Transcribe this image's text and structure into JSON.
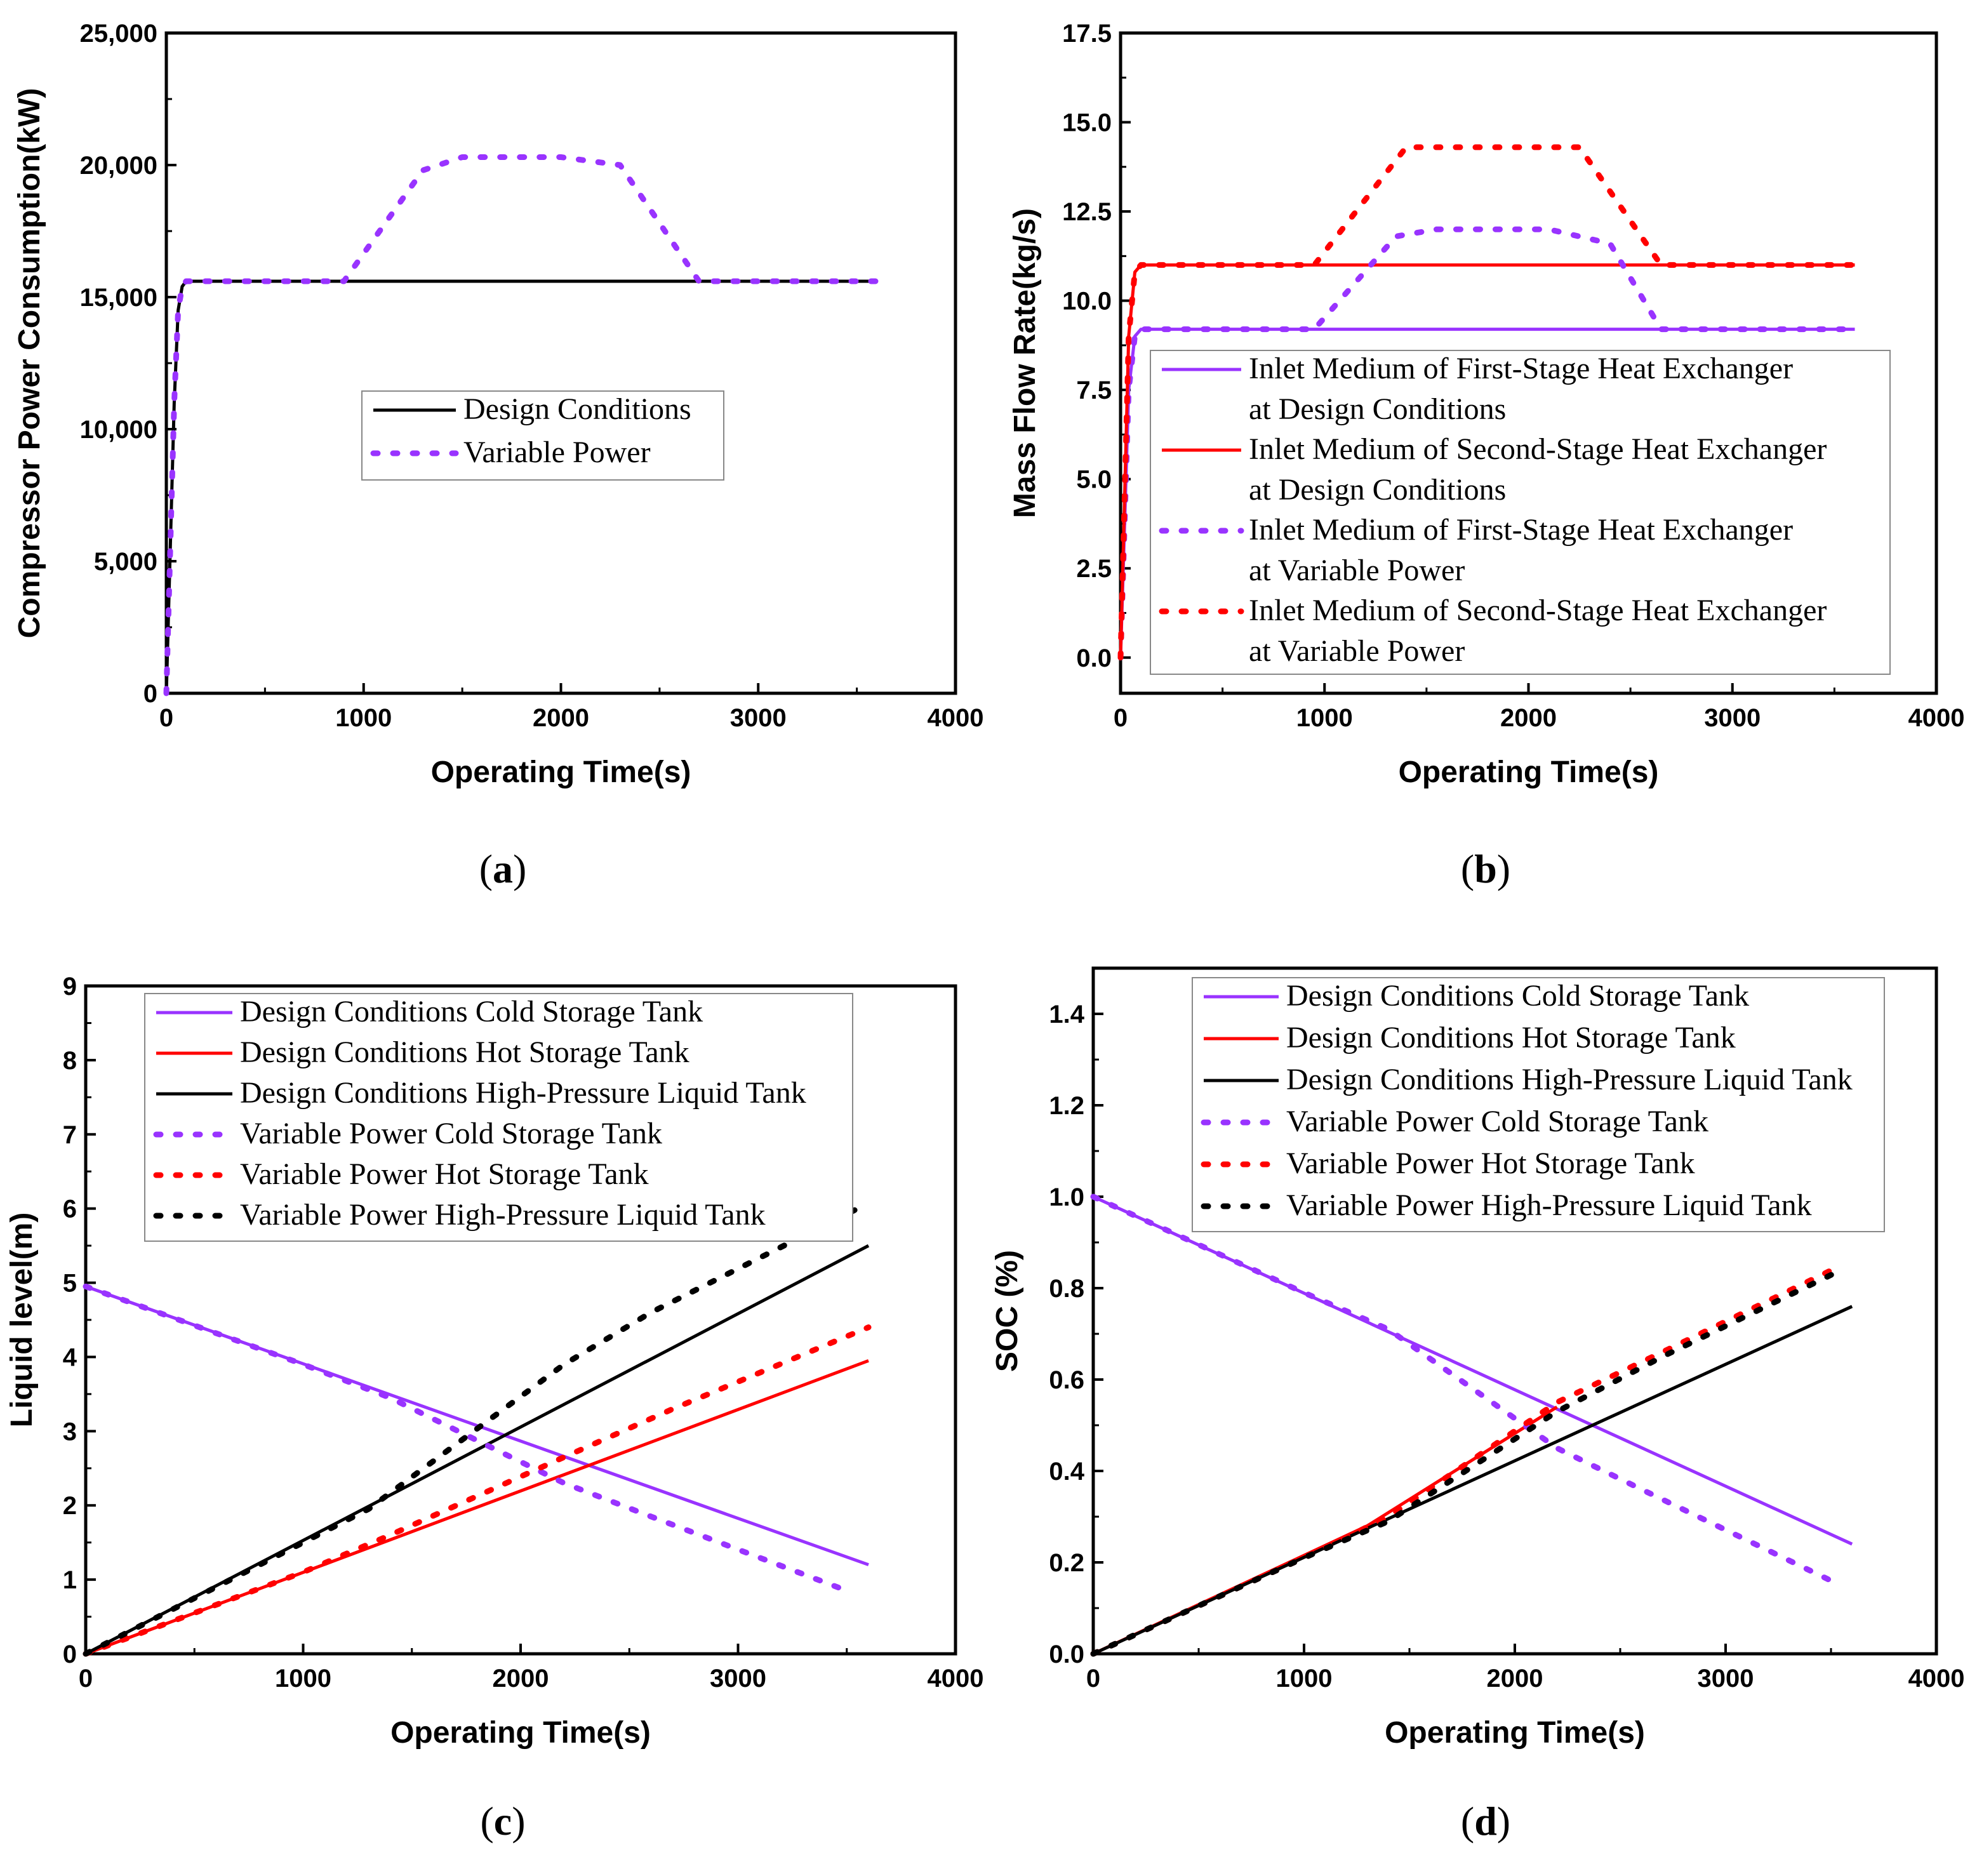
{
  "colors": {
    "purple": "#9933ff",
    "red": "#ff0000",
    "black": "#000000"
  },
  "chart_data": [
    {
      "id": "a",
      "caption_letter": "a",
      "type": "line",
      "xlabel": "Operating Time(s)",
      "ylabel": "Compressor Power Consumption(kW)",
      "xlim": [
        0,
        4000
      ],
      "ylim": [
        0,
        25000
      ],
      "xticks": [
        0,
        1000,
        2000,
        3000,
        4000
      ],
      "xtick_labels": [
        "0",
        "1000",
        "2000",
        "3000",
        "4000"
      ],
      "yticks": [
        0,
        5000,
        10000,
        15000,
        20000,
        25000
      ],
      "ytick_labels": [
        "0",
        "5,000",
        "10,000",
        "15,000",
        "20,000",
        "25,000"
      ],
      "legend_position": "center",
      "series": [
        {
          "name": "Design Conditions",
          "legend_lines": [
            "Design Conditions"
          ],
          "color": "black",
          "style": "solid",
          "x": [
            0,
            40,
            60,
            80,
            100,
            3600
          ],
          "y": [
            0,
            11000,
            14500,
            15400,
            15600,
            15600
          ]
        },
        {
          "name": "Variable Power",
          "legend_lines": [
            "Variable Power"
          ],
          "color": "purple",
          "style": "dotted",
          "x": [
            0,
            40,
            60,
            80,
            100,
            900,
            1300,
            1500,
            2000,
            2300,
            2700,
            3600
          ],
          "y": [
            0,
            11000,
            14500,
            15400,
            15600,
            15600,
            19800,
            20300,
            20300,
            20000,
            15600,
            15600
          ]
        }
      ]
    },
    {
      "id": "b",
      "caption_letter": "b",
      "type": "line",
      "xlabel": "Operating Time(s)",
      "ylabel": "Mass Flow Rate(kg/s)",
      "xlim": [
        0,
        4000
      ],
      "ylim": [
        -1,
        17.5
      ],
      "xticks": [
        0,
        1000,
        2000,
        3000,
        4000
      ],
      "xtick_labels": [
        "0",
        "1000",
        "2000",
        "3000",
        "4000"
      ],
      "yticks": [
        0,
        2.5,
        5,
        7.5,
        10,
        12.5,
        15,
        17.5
      ],
      "ytick_labels": [
        "0.0",
        "2.5",
        "5.0",
        "7.5",
        "10.0",
        "12.5",
        "15.0",
        "17.5"
      ],
      "legend_position": "center-right",
      "series": [
        {
          "name": "Inlet Medium of First-Stage Heat Exchanger at Design Conditions",
          "legend_lines": [
            "Inlet Medium of First-Stage Heat Exchanger",
            "at Design Conditions"
          ],
          "color": "purple",
          "style": "solid",
          "x": [
            0,
            40,
            70,
            100,
            3600
          ],
          "y": [
            0,
            7.5,
            9.0,
            9.2,
            9.2
          ]
        },
        {
          "name": "Inlet Medium of Second-Stage Heat Exchanger at Design Conditions",
          "legend_lines": [
            "Inlet Medium of Second-Stage Heat Exchanger",
            "at Design Conditions"
          ],
          "color": "red",
          "style": "solid",
          "x": [
            0,
            40,
            70,
            100,
            3600
          ],
          "y": [
            0,
            9.0,
            10.8,
            11.0,
            11.0
          ]
        },
        {
          "name": "Inlet Medium of First-Stage Heat Exchanger at Variable Power",
          "legend_lines": [
            "Inlet Medium of First-Stage Heat Exchanger",
            "at Variable Power"
          ],
          "color": "purple",
          "style": "dotted",
          "x": [
            0,
            40,
            70,
            100,
            950,
            1350,
            1550,
            2100,
            2400,
            2650,
            3600
          ],
          "y": [
            0,
            7.5,
            9.0,
            9.2,
            9.2,
            11.8,
            12.0,
            12.0,
            11.6,
            9.2,
            9.2
          ]
        },
        {
          "name": "Inlet Medium of Second-Stage Heat Exchanger at Variable Power",
          "legend_lines": [
            "Inlet Medium of Second-Stage Heat Exchanger",
            "at Variable Power"
          ],
          "color": "red",
          "style": "dotted",
          "x": [
            0,
            40,
            70,
            100,
            950,
            1400,
            2250,
            2650,
            3600
          ],
          "y": [
            0,
            9.0,
            10.8,
            11.0,
            11.0,
            14.3,
            14.3,
            11.0,
            11.0
          ]
        }
      ]
    },
    {
      "id": "c",
      "caption_letter": "c",
      "type": "line",
      "xlabel": "Operating Time(s)",
      "ylabel": "Liquid level(m)",
      "xlim": [
        0,
        4000
      ],
      "ylim": [
        0,
        9
      ],
      "xticks": [
        0,
        1000,
        2000,
        3000,
        4000
      ],
      "xtick_labels": [
        "0",
        "1000",
        "2000",
        "3000",
        "4000"
      ],
      "yticks": [
        0,
        1,
        2,
        3,
        4,
        5,
        6,
        7,
        8,
        9
      ],
      "ytick_labels": [
        "0",
        "1",
        "2",
        "3",
        "4",
        "5",
        "6",
        "7",
        "8",
        "9"
      ],
      "legend_position": "top-left",
      "series": [
        {
          "name": "Design Conditions Cold Storage Tank",
          "legend_lines": [
            "Design Conditions Cold Storage Tank"
          ],
          "color": "purple",
          "style": "solid",
          "x": [
            0,
            3600
          ],
          "y": [
            4.95,
            1.2
          ]
        },
        {
          "name": "Design Conditions Hot Storage Tank",
          "legend_lines": [
            "Design Conditions Hot Storage Tank"
          ],
          "color": "red",
          "style": "solid",
          "x": [
            0,
            3600
          ],
          "y": [
            0,
            3.95
          ]
        },
        {
          "name": "Design Conditions High-Pressure Liquid Tank",
          "legend_lines": [
            "Design Conditions High-Pressure Liquid Tank"
          ],
          "color": "black",
          "style": "solid",
          "x": [
            0,
            3600
          ],
          "y": [
            0,
            5.5
          ]
        },
        {
          "name": "Variable Power Cold Storage Tank",
          "legend_lines": [
            "Variable Power Cold Storage Tank"
          ],
          "color": "purple",
          "style": "dotted",
          "x": [
            0,
            1000,
            1400,
            2200,
            2600,
            3500
          ],
          "y": [
            4.95,
            3.9,
            3.45,
            2.3,
            1.85,
            0.85
          ]
        },
        {
          "name": "Variable Power Hot Storage Tank",
          "legend_lines": [
            "Variable Power Hot Storage Tank"
          ],
          "color": "red",
          "style": "dotted",
          "x": [
            0,
            1000,
            1400,
            2200,
            2700,
            3600
          ],
          "y": [
            0,
            1.1,
            1.6,
            2.65,
            3.3,
            4.4
          ]
        },
        {
          "name": "Variable Power High-Pressure Liquid Tank",
          "legend_lines": [
            "Variable Power High-Pressure Liquid Tank"
          ],
          "color": "black",
          "style": "dotted",
          "x": [
            0,
            1000,
            1300,
            2200,
            2600,
            3550
          ],
          "y": [
            0,
            1.5,
            1.95,
            3.9,
            4.6,
            6.0
          ]
        }
      ]
    },
    {
      "id": "d",
      "caption_letter": "d",
      "type": "line",
      "xlabel": "Operating Time(s)",
      "ylabel": "SOC (%)",
      "xlim": [
        0,
        4000
      ],
      "ylim": [
        0,
        1.5
      ],
      "xticks": [
        0,
        1000,
        2000,
        3000,
        4000
      ],
      "xtick_labels": [
        "0",
        "1000",
        "2000",
        "3000",
        "4000"
      ],
      "yticks": [
        0,
        0.2,
        0.4,
        0.6,
        0.8,
        1.0,
        1.2,
        1.4
      ],
      "ytick_labels": [
        "0.0",
        "0.2",
        "0.4",
        "0.6",
        "0.8",
        "1.0",
        "1.2",
        "1.4"
      ],
      "legend_position": "top-right",
      "series": [
        {
          "name": "Design Conditions Cold Storage Tank",
          "legend_lines": [
            "Design Conditions Cold Storage Tank"
          ],
          "color": "purple",
          "style": "solid",
          "x": [
            0,
            3600
          ],
          "y": [
            1.0,
            0.24
          ]
        },
        {
          "name": "Design Conditions Hot Storage Tank",
          "legend_lines": [
            "Design Conditions Hot Storage Tank"
          ],
          "color": "red",
          "style": "solid",
          "x": [
            0,
            1300,
            2200
          ],
          "y": [
            0,
            0.28,
            0.54
          ]
        },
        {
          "name": "Design Conditions High-Pressure Liquid Tank",
          "legend_lines": [
            "Design Conditions High-Pressure Liquid Tank"
          ],
          "color": "black",
          "style": "solid",
          "x": [
            0,
            3600
          ],
          "y": [
            0,
            0.76
          ]
        },
        {
          "name": "Variable Power Cold Storage Tank",
          "legend_lines": [
            "Variable Power Cold Storage Tank"
          ],
          "color": "purple",
          "style": "dotted",
          "x": [
            0,
            1000,
            1400,
            2200,
            2600,
            3500
          ],
          "y": [
            1.0,
            0.79,
            0.71,
            0.45,
            0.36,
            0.16
          ]
        },
        {
          "name": "Variable Power Hot Storage Tank",
          "legend_lines": [
            "Variable Power Hot Storage Tank"
          ],
          "color": "red",
          "style": "dotted",
          "x": [
            0,
            1000,
            1400,
            2200,
            2700,
            3550
          ],
          "y": [
            0,
            0.21,
            0.3,
            0.55,
            0.66,
            0.85
          ]
        },
        {
          "name": "Variable Power High-Pressure Liquid Tank",
          "legend_lines": [
            "Variable Power High-Pressure Liquid Tank"
          ],
          "color": "black",
          "style": "dotted",
          "x": [
            0,
            1000,
            1400,
            2200,
            2700,
            3550
          ],
          "y": [
            0,
            0.21,
            0.29,
            0.53,
            0.65,
            0.84
          ]
        }
      ]
    }
  ]
}
